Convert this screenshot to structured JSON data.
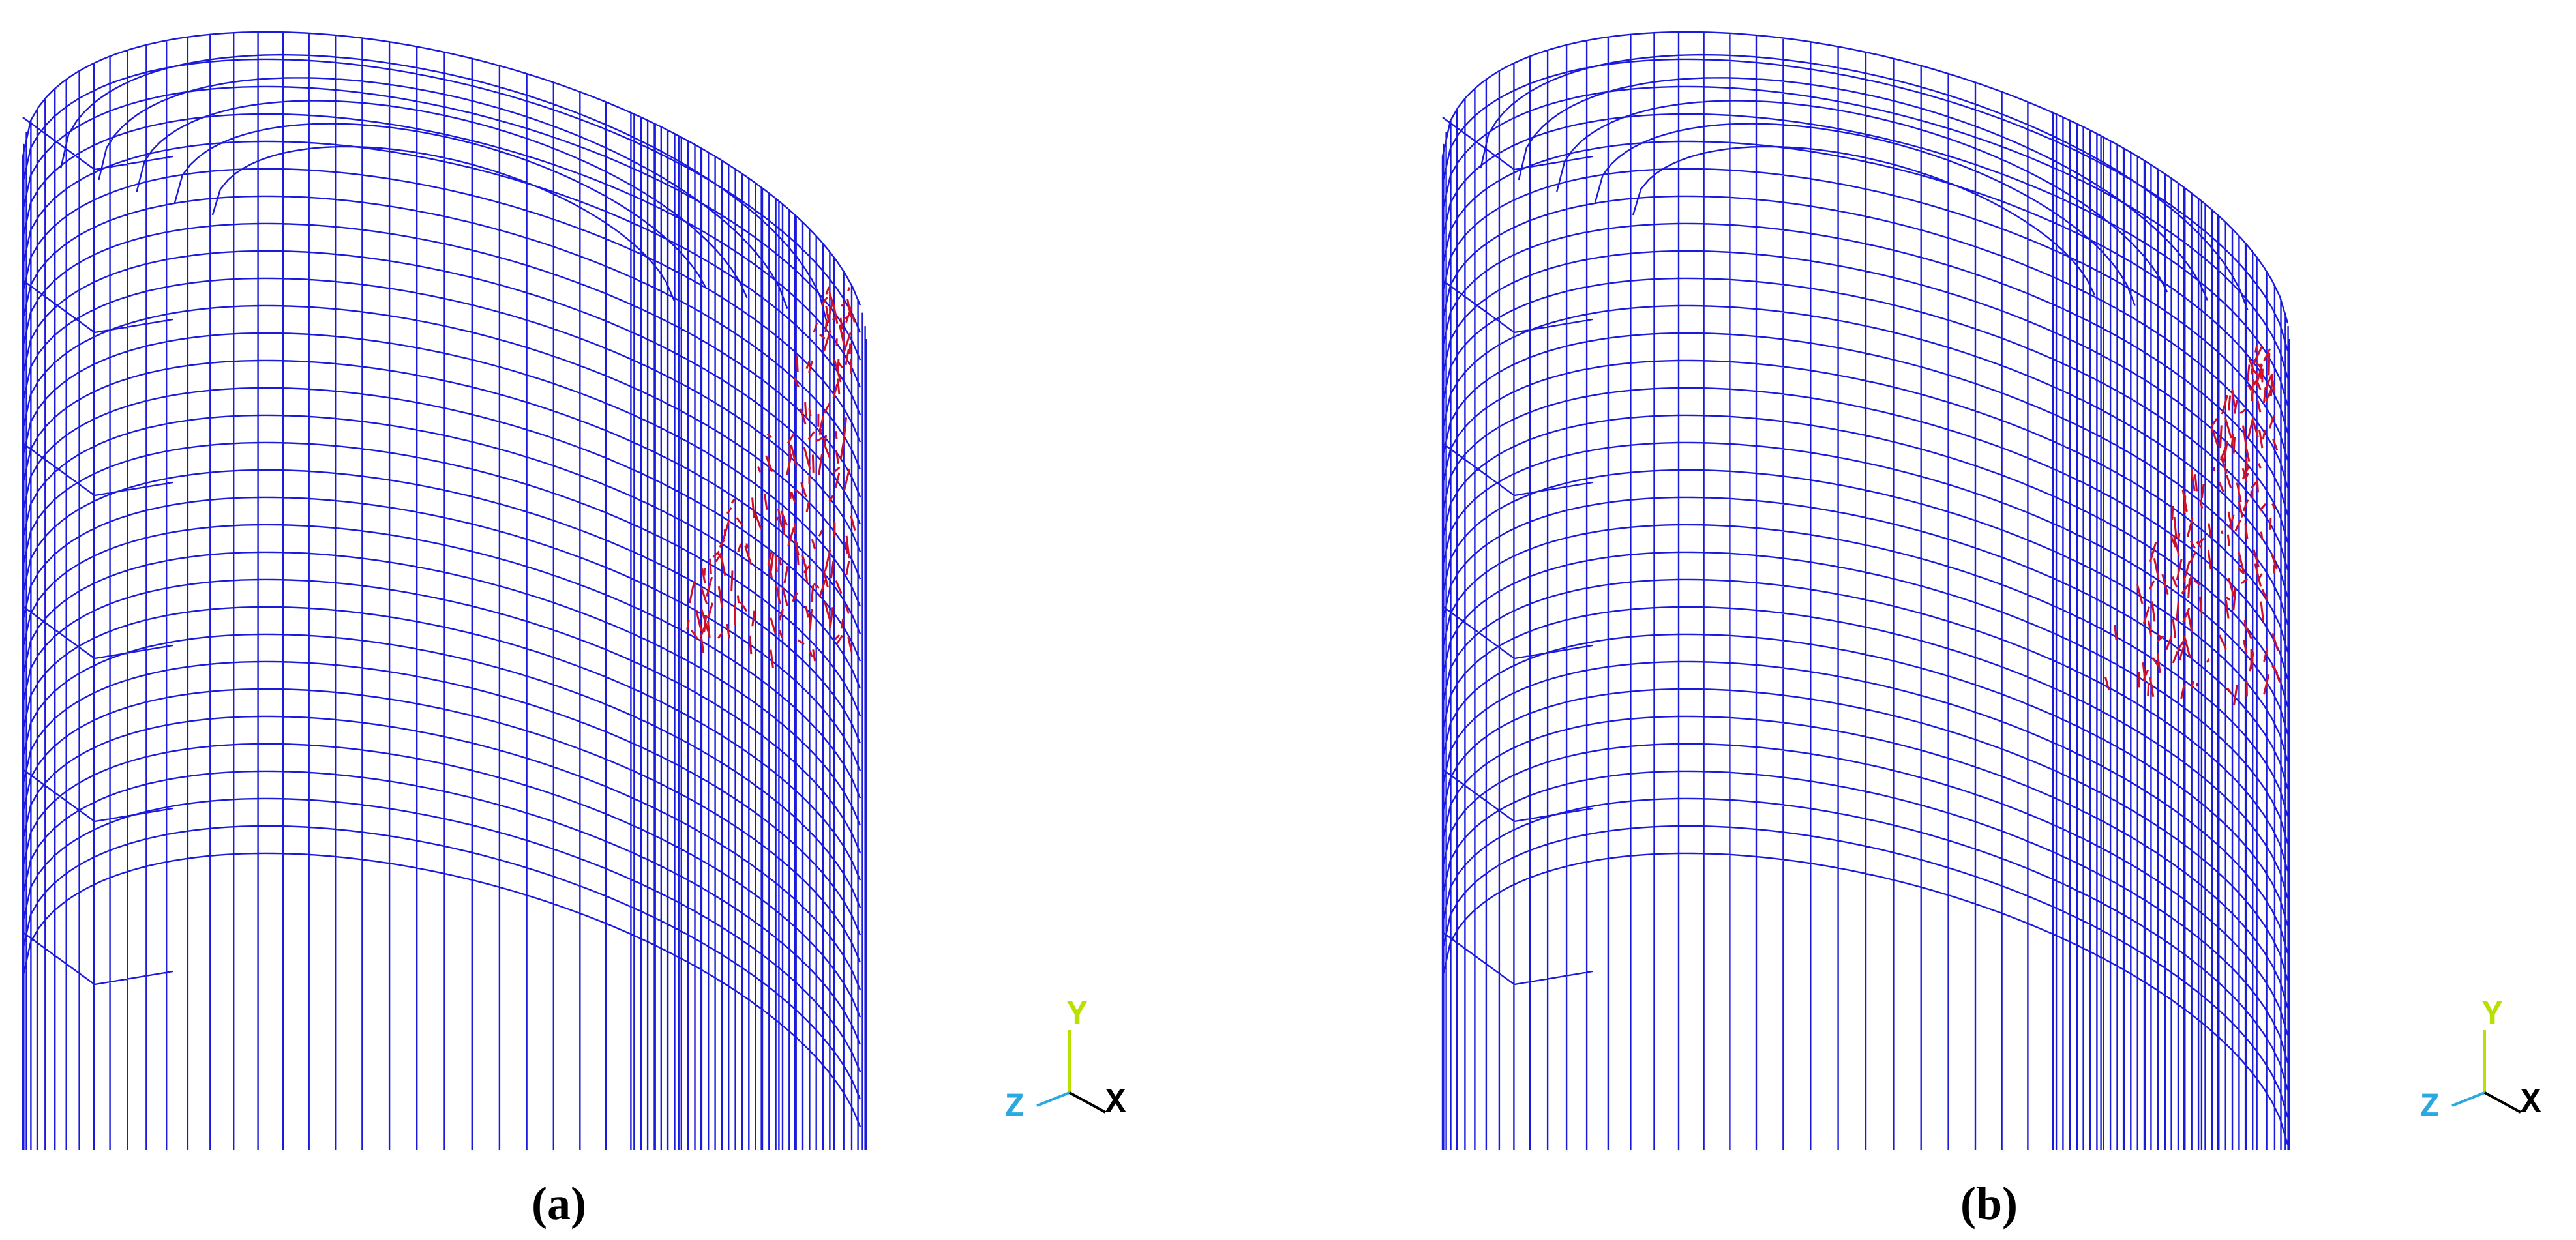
{
  "panels": [
    {
      "label": "(a)",
      "axes": {
        "y": "Y",
        "z": "Z",
        "x": "X"
      }
    },
    {
      "label": "(b)",
      "axes": {
        "y": "Y",
        "z": "Z",
        "x": "X"
      }
    }
  ]
}
